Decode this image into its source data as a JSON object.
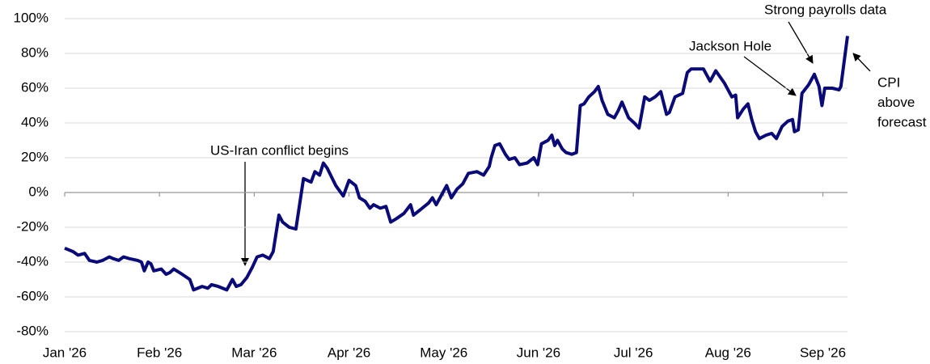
{
  "chart_data": {
    "type": "line",
    "x": [
      0,
      0.09,
      0.14,
      0.21,
      0.26,
      0.34,
      0.4,
      0.47,
      0.51,
      0.57,
      0.62,
      0.68,
      0.77,
      0.81,
      0.84,
      0.88,
      0.91,
      0.94,
      1.02,
      1.07,
      1.11,
      1.15,
      1.24,
      1.32,
      1.36,
      1.45,
      1.51,
      1.55,
      1.62,
      1.71,
      1.77,
      1.81,
      1.86,
      1.92,
      1.98,
      2.03,
      2.09,
      2.16,
      2.2,
      2.26,
      2.3,
      2.37,
      2.44,
      2.52,
      2.6,
      2.64,
      2.69,
      2.73,
      2.77,
      2.86,
      2.94,
      3.0,
      3.07,
      3.11,
      3.17,
      3.22,
      3.26,
      3.33,
      3.39,
      3.44,
      3.5,
      3.58,
      3.65,
      3.68,
      3.75,
      3.84,
      3.88,
      3.92,
      3.99,
      4.03,
      4.08,
      4.14,
      4.2,
      4.26,
      4.35,
      4.42,
      4.48,
      4.5,
      4.54,
      4.59,
      4.65,
      4.69,
      4.75,
      4.8,
      4.88,
      4.95,
      4.99,
      5.03,
      5.1,
      5.14,
      5.17,
      5.2,
      5.25,
      5.29,
      5.35,
      5.4,
      5.44,
      5.48,
      5.53,
      5.59,
      5.63,
      5.67,
      5.73,
      5.8,
      5.84,
      5.88,
      5.95,
      6.01,
      6.06,
      6.12,
      6.17,
      6.23,
      6.29,
      6.35,
      6.38,
      6.44,
      6.52,
      6.57,
      6.61,
      6.74,
      6.81,
      6.87,
      6.96,
      7.04,
      7.08,
      7.1,
      7.16,
      7.21,
      7.25,
      7.29,
      7.33,
      7.4,
      7.46,
      7.51,
      7.57,
      7.63,
      7.68,
      7.7,
      7.74,
      7.78,
      7.85,
      7.91,
      7.96,
      7.99,
      8.02,
      8.1,
      8.17,
      8.19,
      8.26
    ],
    "series": [
      {
        "color": "#0a0a78",
        "values": [
          -32,
          -34,
          -36,
          -35,
          -39,
          -40,
          -39,
          -37,
          -38,
          -39,
          -37,
          -38,
          -39,
          -40,
          -45,
          -40,
          -41,
          -45,
          -44,
          -47,
          -46,
          -44,
          -47,
          -50,
          -56,
          -54,
          -55,
          -53,
          -54,
          -56,
          -50,
          -54,
          -53,
          -49,
          -43,
          -37,
          -36,
          -38,
          -34,
          -13,
          -17,
          -20,
          -21,
          8,
          6,
          12,
          10,
          17,
          14,
          4,
          -2,
          7,
          4,
          -3,
          -5,
          -9,
          -7,
          -9,
          -8,
          -17,
          -15,
          -12,
          -7,
          -13,
          -10,
          -6,
          -3,
          -7,
          0,
          4,
          -3,
          2,
          5,
          11,
          12,
          10,
          15,
          20,
          27,
          28,
          22,
          19,
          20,
          16,
          17,
          20,
          16,
          28,
          30,
          33,
          27,
          30,
          25,
          23,
          22,
          23,
          50,
          51,
          55,
          58,
          61,
          53,
          45,
          43,
          47,
          52,
          43,
          40,
          37,
          55,
          53,
          55,
          58,
          45,
          46,
          55,
          57,
          69,
          71,
          71,
          64,
          70,
          63,
          55,
          56,
          43,
          48,
          51,
          42,
          35,
          31,
          33,
          34,
          31,
          38,
          41,
          42,
          35,
          36,
          57,
          62,
          68,
          61,
          50,
          60,
          60,
          59,
          61,
          90
        ]
      }
    ],
    "xlim": [
      0,
      8.26
    ],
    "xticks": [
      {
        "value": 0,
        "label": "Jan '26"
      },
      {
        "value": 1,
        "label": "Feb '26"
      },
      {
        "value": 2,
        "label": "Mar '26"
      },
      {
        "value": 3,
        "label": "Apr '26"
      },
      {
        "value": 4,
        "label": "May '26"
      },
      {
        "value": 5,
        "label": "Jun '26"
      },
      {
        "value": 6,
        "label": "Jul '26"
      },
      {
        "value": 7,
        "label": "Aug '26"
      },
      {
        "value": 8,
        "label": "Sep '26"
      }
    ],
    "ylim": [
      -80,
      100
    ],
    "yticks": [
      {
        "value": -80,
        "label": "-80%"
      },
      {
        "value": -60,
        "label": "-60%"
      },
      {
        "value": -40,
        "label": "-40%"
      },
      {
        "value": -20,
        "label": "-20%"
      },
      {
        "value": 0,
        "label": "0%"
      },
      {
        "value": 20,
        "label": "20%"
      },
      {
        "value": 40,
        "label": "40%"
      },
      {
        "value": 60,
        "label": "60%"
      },
      {
        "value": 80,
        "label": "80%"
      },
      {
        "value": 100,
        "label": "100%"
      }
    ],
    "grid": true,
    "annotations": [
      [
        "US-Iran conflict begins"
      ],
      [
        "Jackson Hole"
      ],
      [
        "Strong payrolls data"
      ],
      [
        "CPI",
        "above",
        "forecast"
      ]
    ]
  }
}
